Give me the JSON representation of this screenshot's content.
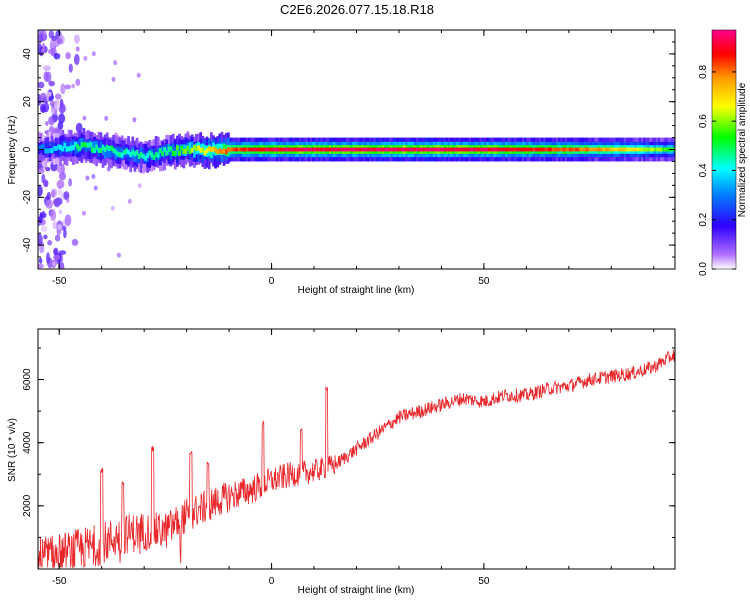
{
  "title": "C2E6.2026.077.15.18.R18",
  "chart_data": [
    {
      "type": "heatmap",
      "xlabel": "Height of straight line (km)",
      "ylabel": "Frequency (Hz)",
      "xlim": [
        -55,
        95
      ],
      "ylim": [
        -50,
        50
      ],
      "xticks": [
        -50,
        0,
        50
      ],
      "yticks": [
        -40,
        -20,
        0,
        20,
        40
      ],
      "colorbar": {
        "label": "Normalized spectral amplitude",
        "range": [
          0,
          0.97
        ],
        "ticks": [
          "0.0",
          "0.2",
          "0.4",
          "0.6",
          "0.8"
        ],
        "colormap": [
          "#ffffff",
          "#8800ff",
          "#0000ff",
          "#00ffff",
          "#00ff00",
          "#ffff00",
          "#ff8800",
          "#ff0000",
          "#ff0088"
        ]
      },
      "ridge": {
        "x": [
          -55,
          -50,
          -45,
          -40,
          -35,
          -30,
          -25,
          -20,
          -15,
          -10,
          -5,
          0,
          10,
          20,
          30,
          40,
          50,
          60,
          70,
          80,
          95
        ],
        "frequency": [
          0,
          0.5,
          1.5,
          0,
          -1.5,
          -3,
          -1,
          0,
          -0.5,
          0,
          0,
          0,
          0,
          0,
          0,
          0,
          0,
          0,
          0,
          0,
          0
        ],
        "peak_amplitude": [
          0.3,
          0.4,
          0.5,
          0.5,
          0.45,
          0.45,
          0.5,
          0.6,
          0.7,
          0.85,
          0.9,
          0.95,
          0.95,
          0.95,
          0.97,
          0.97,
          0.95,
          0.9,
          0.85,
          0.75,
          0.55
        ]
      },
      "noise_band_x": [
        -55,
        -45
      ]
    },
    {
      "type": "line",
      "xlabel": "Height of straight line (km)",
      "ylabel": "SNR (10 * v/v)",
      "xlim": [
        -55,
        95
      ],
      "ylim": [
        0,
        7600
      ],
      "xticks": [
        -50,
        0,
        50
      ],
      "yticks": [
        2000,
        4000,
        6000
      ],
      "color": "#e8262a",
      "series": [
        {
          "x": [
            -55,
            -50,
            -45,
            -40,
            -35,
            -30,
            -25,
            -20,
            -15,
            -10,
            -5,
            0,
            5,
            10,
            15,
            20,
            25,
            30,
            35,
            40,
            45,
            50,
            55,
            60,
            65,
            70,
            75,
            80,
            85,
            90,
            95
          ],
          "values": [
            300,
            400,
            600,
            800,
            1100,
            1200,
            1200,
            1700,
            2000,
            2300,
            2500,
            2800,
            3000,
            3100,
            3300,
            3800,
            4300,
            4800,
            5000,
            5200,
            5400,
            5300,
            5500,
            5500,
            5700,
            5800,
            6000,
            6100,
            6200,
            6400,
            6800
          ]
        }
      ],
      "spikes": [
        {
          "x": -40,
          "value": 3200
        },
        {
          "x": -35,
          "value": 2800
        },
        {
          "x": -28,
          "value": 3900
        },
        {
          "x": -19,
          "value": 3800
        },
        {
          "x": -15,
          "value": 3500
        },
        {
          "x": -2,
          "value": 4700
        },
        {
          "x": 7,
          "value": 4600
        },
        {
          "x": 13,
          "value": 5800
        }
      ]
    }
  ]
}
